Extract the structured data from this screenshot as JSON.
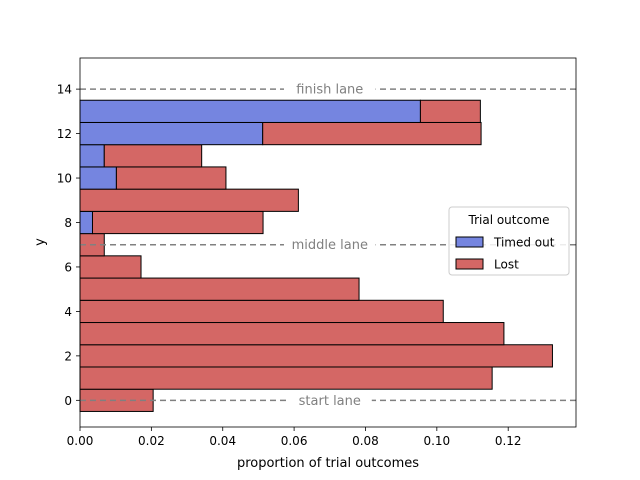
{
  "chart_data": {
    "type": "bar",
    "orientation": "horizontal",
    "stacked": true,
    "xlabel": "proportion of trial outcomes",
    "ylabel": "y",
    "xlim": [
      0,
      0.139
    ],
    "ylim": [
      -1.2,
      15.4
    ],
    "x_ticks": [
      0.0,
      0.02,
      0.04,
      0.06,
      0.08,
      0.1,
      0.12
    ],
    "x_tick_labels": [
      "0.00",
      "0.02",
      "0.04",
      "0.06",
      "0.08",
      "0.10",
      "0.12"
    ],
    "y_ticks": [
      0,
      2,
      4,
      6,
      8,
      10,
      12,
      14
    ],
    "y_tick_labels": [
      "0",
      "2",
      "4",
      "6",
      "8",
      "10",
      "12",
      "14"
    ],
    "bins": [
      [
        -0.5,
        0.5
      ],
      [
        0.5,
        1.5
      ],
      [
        1.5,
        2.5
      ],
      [
        2.5,
        3.5
      ],
      [
        3.5,
        4.5
      ],
      [
        4.5,
        5.5
      ],
      [
        5.5,
        6.5
      ],
      [
        6.5,
        7.5
      ],
      [
        7.5,
        8.5
      ],
      [
        8.5,
        9.5
      ],
      [
        9.5,
        10.5
      ],
      [
        10.5,
        11.5
      ],
      [
        11.5,
        12.5
      ],
      [
        12.5,
        13.5
      ]
    ],
    "series": [
      {
        "name": "Timed out",
        "color": "#7585e0",
        "values": [
          0,
          0,
          0,
          0,
          0,
          0,
          0,
          0,
          0.0035,
          0,
          0.0102,
          0.0068,
          0.0512,
          0.0954
        ]
      },
      {
        "name": "Lost",
        "color": "#d46765",
        "values": [
          0.0205,
          0.1155,
          0.1324,
          0.1188,
          0.1018,
          0.0782,
          0.0171,
          0.0068,
          0.0478,
          0.0612,
          0.0307,
          0.0273,
          0.0612,
          0.0168
        ]
      }
    ],
    "reference_lines": [
      {
        "y": 0,
        "label": "start lane",
        "label_x": 0.07
      },
      {
        "y": 7,
        "label": "middle lane",
        "label_x": 0.07
      },
      {
        "y": 14,
        "label": "finish lane",
        "label_x": 0.07
      }
    ],
    "legend": {
      "title": "Trial outcome",
      "placement": "center-right",
      "entries": [
        "Timed out",
        "Lost"
      ]
    },
    "grid": false
  }
}
